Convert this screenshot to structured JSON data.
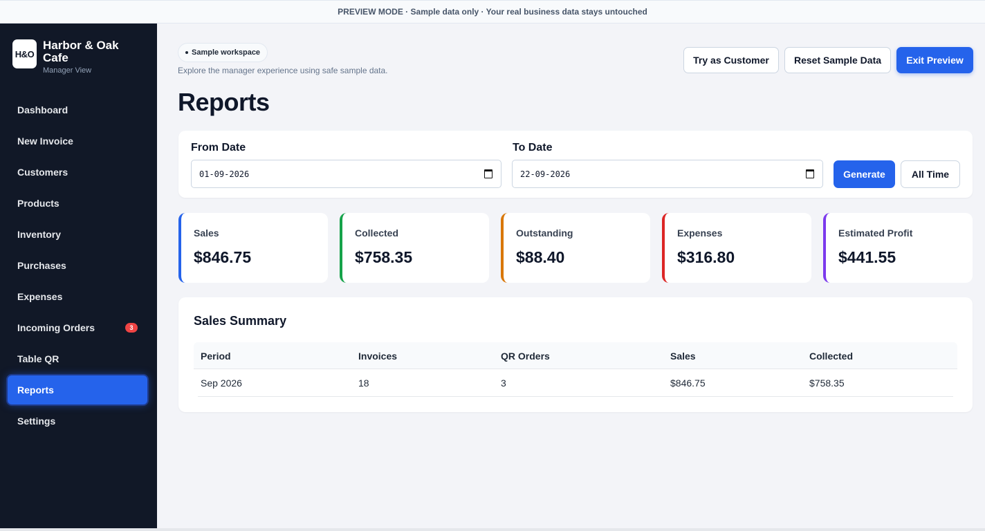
{
  "banner": "PREVIEW MODE · Sample data only · Your real business data stays untouched",
  "brand": {
    "logo": "H&O",
    "name": "Harbor & Oak Cafe",
    "sub": "Manager View"
  },
  "nav": [
    {
      "label": "Dashboard"
    },
    {
      "label": "New Invoice"
    },
    {
      "label": "Customers"
    },
    {
      "label": "Products"
    },
    {
      "label": "Inventory"
    },
    {
      "label": "Purchases"
    },
    {
      "label": "Expenses"
    },
    {
      "label": "Incoming Orders",
      "badge": "3"
    },
    {
      "label": "Table QR"
    },
    {
      "label": "Reports",
      "active": true
    },
    {
      "label": "Settings"
    }
  ],
  "header": {
    "pill": "Sample workspace",
    "subtitle": "Explore the manager experience using safe sample data.",
    "title": "Reports",
    "try_customer": "Try as Customer",
    "reset": "Reset Sample Data",
    "exit": "Exit Preview"
  },
  "filter": {
    "from_label": "From Date",
    "from_value": "01-09-2026",
    "to_label": "To Date",
    "to_value": "22-09-2026",
    "generate": "Generate",
    "all_time": "All Time"
  },
  "stats": [
    {
      "label": "Sales",
      "value": "$846.75",
      "color": "#2563eb"
    },
    {
      "label": "Collected",
      "value": "$758.35",
      "color": "#16a34a"
    },
    {
      "label": "Outstanding",
      "value": "$88.40",
      "color": "#d97706"
    },
    {
      "label": "Expenses",
      "value": "$316.80",
      "color": "#dc2626"
    },
    {
      "label": "Estimated Profit",
      "value": "$441.55",
      "color": "#7c3aed"
    }
  ],
  "summary": {
    "title": "Sales Summary",
    "columns": [
      "Period",
      "Invoices",
      "QR Orders",
      "Sales",
      "Collected"
    ],
    "rows": [
      [
        "Sep 2026",
        "18",
        "3",
        "$846.75",
        "$758.35"
      ]
    ]
  }
}
